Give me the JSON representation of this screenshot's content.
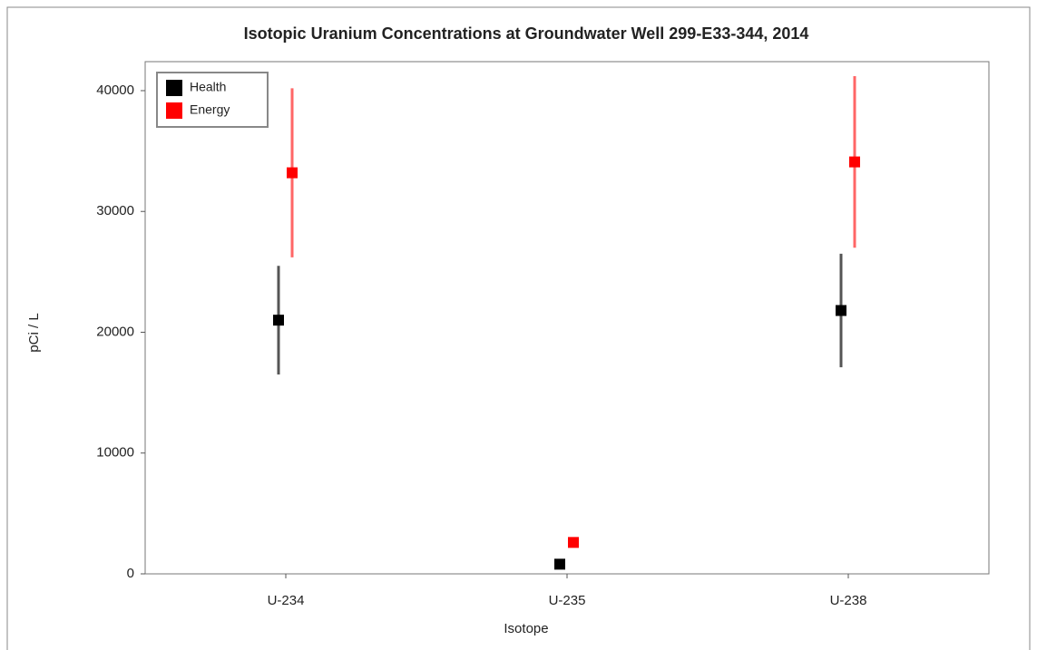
{
  "chart_data": {
    "type": "errorbar",
    "title": "Isotopic Uranium Concentrations at Groundwater Well 299-E33-344, 2014",
    "x_label": "Isotope",
    "y_label": "pCi / L",
    "categories": [
      "U-234",
      "U-235",
      "U-238"
    ],
    "series": [
      {
        "name": "Health",
        "color": "#000000",
        "error_color": "#555555",
        "values": [
          21000,
          800,
          21800
        ],
        "errors": [
          4500,
          100,
          4700
        ]
      },
      {
        "name": "Energy",
        "color": "#ff0000",
        "error_color": "#ff6666",
        "values": [
          33200,
          2600,
          34100
        ],
        "errors": [
          7000,
          150,
          7100
        ]
      }
    ],
    "ylim": [
      0,
      42400
    ],
    "yticks": [
      0,
      10000,
      20000,
      30000,
      40000
    ],
    "legend": "upper-left"
  }
}
